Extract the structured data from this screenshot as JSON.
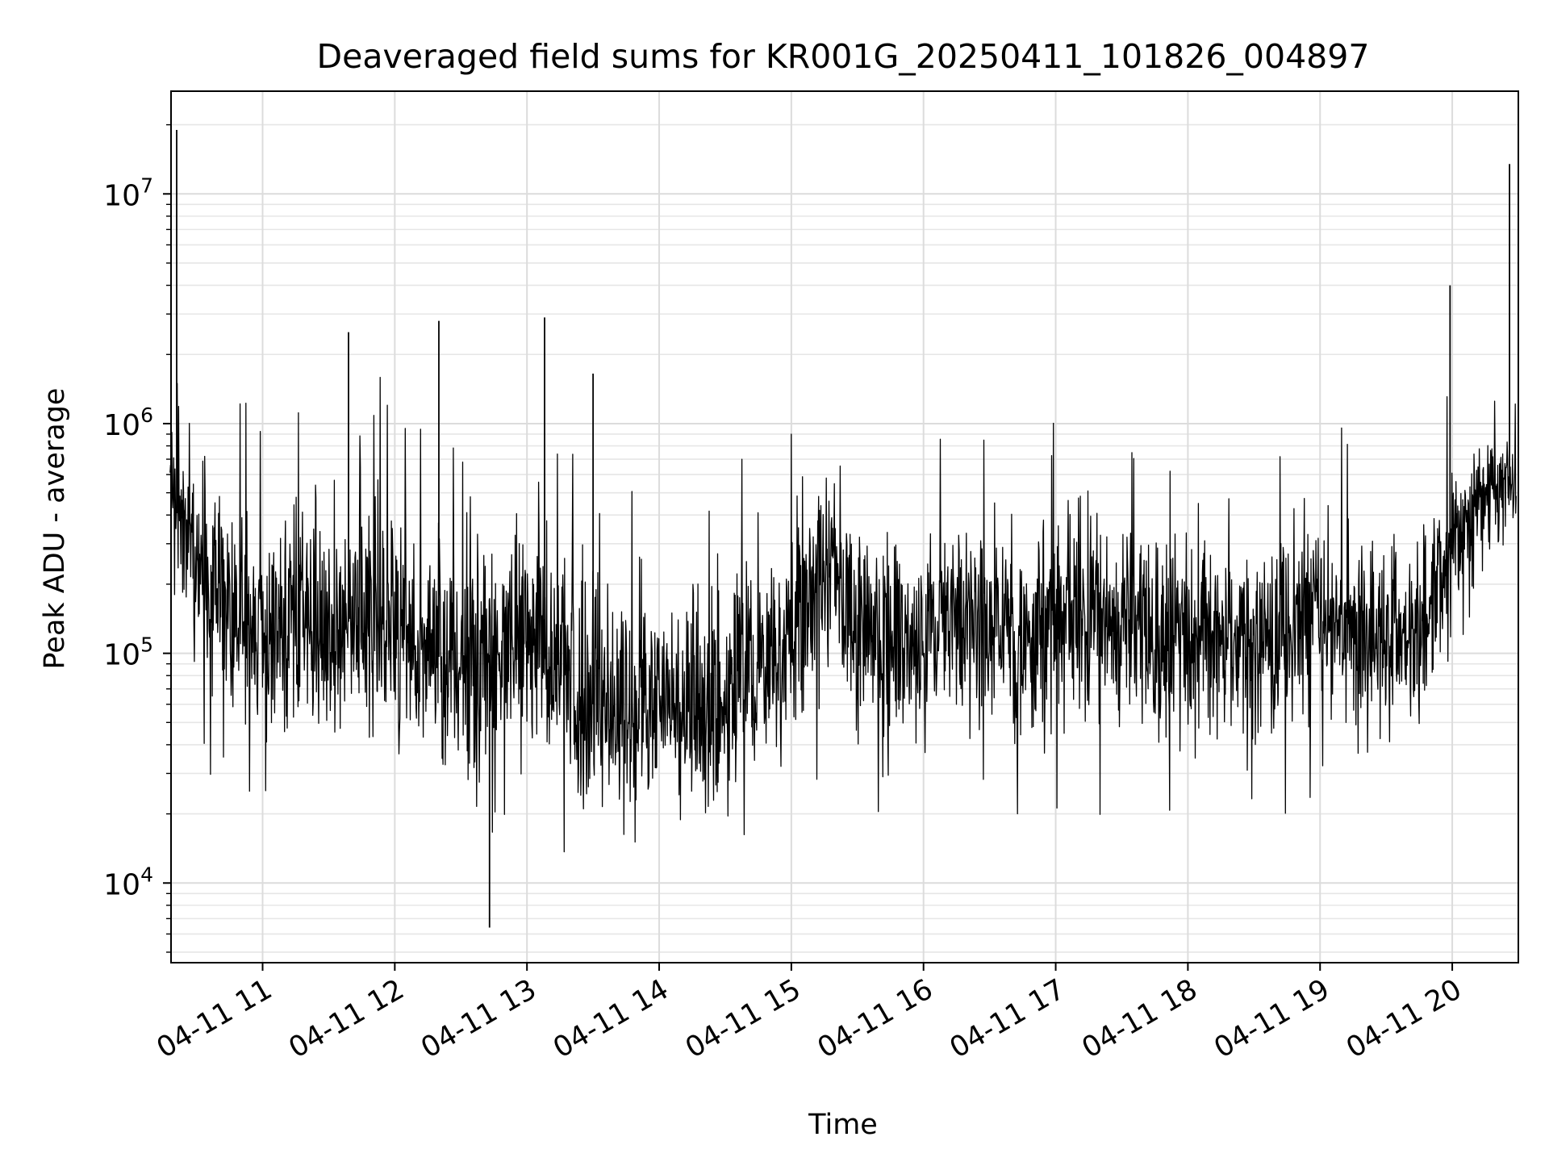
{
  "chart_data": {
    "type": "line",
    "title": "Deaveraged field sums for KR001G_20250411_101826_004897",
    "xlabel": "Time",
    "ylabel": "Peak ADU - average",
    "xscale": "time",
    "yscale": "log",
    "xlim": [
      "2025-04-11 10:18:26",
      "2025-04-11 20:30:00"
    ],
    "ylim": [
      4500,
      28000000
    ],
    "grid": true,
    "legend": "none",
    "series_color": "#000000",
    "x_ticks": [
      {
        "t": "2025-04-11 11:00",
        "label": "04-11 11"
      },
      {
        "t": "2025-04-11 12:00",
        "label": "04-11 12"
      },
      {
        "t": "2025-04-11 13:00",
        "label": "04-11 13"
      },
      {
        "t": "2025-04-11 14:00",
        "label": "04-11 14"
      },
      {
        "t": "2025-04-11 15:00",
        "label": "04-11 15"
      },
      {
        "t": "2025-04-11 16:00",
        "label": "04-11 16"
      },
      {
        "t": "2025-04-11 17:00",
        "label": "04-11 17"
      },
      {
        "t": "2025-04-11 18:00",
        "label": "04-11 18"
      },
      {
        "t": "2025-04-11 19:00",
        "label": "04-11 19"
      },
      {
        "t": "2025-04-11 20:00",
        "label": "04-11 20"
      }
    ],
    "y_ticks": [
      {
        "value": 10000,
        "base": "10",
        "exp": "4"
      },
      {
        "value": 100000,
        "base": "10",
        "exp": "5"
      },
      {
        "value": 1000000,
        "base": "10",
        "exp": "6"
      },
      {
        "value": 10000000,
        "base": "10",
        "exp": "7"
      }
    ],
    "series": [
      {
        "x": [
          "2025-04-11 10:18",
          "2025-04-11 10:30",
          "2025-04-11 10:45",
          "2025-04-11 11:00",
          "2025-04-11 11:15",
          "2025-04-11 11:30",
          "2025-04-11 11:45",
          "2025-04-11 12:00",
          "2025-04-11 12:15",
          "2025-04-11 12:30",
          "2025-04-11 12:45",
          "2025-04-11 13:00",
          "2025-04-11 13:15",
          "2025-04-11 13:30",
          "2025-04-11 13:45",
          "2025-04-11 14:00",
          "2025-04-11 14:15",
          "2025-04-11 14:30",
          "2025-04-11 14:45",
          "2025-04-11 15:00",
          "2025-04-11 15:15",
          "2025-04-11 15:30",
          "2025-04-11 15:45",
          "2025-04-11 16:00",
          "2025-04-11 16:15",
          "2025-04-11 16:30",
          "2025-04-11 16:45",
          "2025-04-11 17:00",
          "2025-04-11 17:15",
          "2025-04-11 17:30",
          "2025-04-11 17:45",
          "2025-04-11 18:00",
          "2025-04-11 18:15",
          "2025-04-11 18:30",
          "2025-04-11 18:45",
          "2025-04-11 19:00",
          "2025-04-11 19:15",
          "2025-04-11 19:30",
          "2025-04-11 19:45",
          "2025-04-11 20:00",
          "2025-04-11 20:15",
          "2025-04-11 20:29"
        ],
        "y": [
          500000,
          220000,
          150000,
          140000,
          130000,
          120000,
          150000,
          110000,
          100000,
          90000,
          100000,
          100000,
          90000,
          60000,
          50000,
          55000,
          50000,
          60000,
          80000,
          120000,
          250000,
          130000,
          110000,
          100000,
          120000,
          130000,
          110000,
          150000,
          140000,
          130000,
          120000,
          110000,
          120000,
          110000,
          120000,
          150000,
          120000,
          110000,
          120000,
          300000,
          500000,
          550000
        ],
        "envelope": {
          "upper": [
            1100000,
            900000,
            900000,
            800000,
            750000,
            1000000,
            1200000,
            800000,
            600000,
            600000,
            650000,
            700000,
            600000,
            400000,
            300000,
            350000,
            330000,
            350000,
            450000,
            700000,
            900000,
            650000,
            500000,
            500000,
            600000,
            600000,
            550000,
            750000,
            650000,
            500000,
            450000,
            420000,
            450000,
            430000,
            500000,
            750000,
            450000,
            400000,
            420000,
            900000,
            1000000,
            950000
          ],
          "lower": [
            120000,
            50000,
            40000,
            35000,
            35000,
            30000,
            30000,
            30000,
            25000,
            22000,
            22000,
            25000,
            22000,
            15000,
            12000,
            15000,
            13000,
            15000,
            20000,
            30000,
            50000,
            35000,
            30000,
            28000,
            30000,
            32000,
            28000,
            35000,
            33000,
            30000,
            28000,
            27000,
            28000,
            27000,
            30000,
            35000,
            30000,
            28000,
            30000,
            70000,
            150000,
            250000
          ]
        },
        "spikes": [
          {
            "t": "2025-04-11 10:21",
            "value": 19000000
          },
          {
            "t": "2025-04-11 11:39",
            "value": 2500000
          },
          {
            "t": "2025-04-11 12:20",
            "value": 2800000
          },
          {
            "t": "2025-04-11 13:08",
            "value": 2900000
          },
          {
            "t": "2025-04-11 13:30",
            "value": 1650000
          },
          {
            "t": "2025-04-11 12:43",
            "value": 6400
          },
          {
            "t": "2025-04-11 19:59",
            "value": 4000000
          },
          {
            "t": "2025-04-11 20:26",
            "value": 13500000
          }
        ]
      }
    ]
  }
}
